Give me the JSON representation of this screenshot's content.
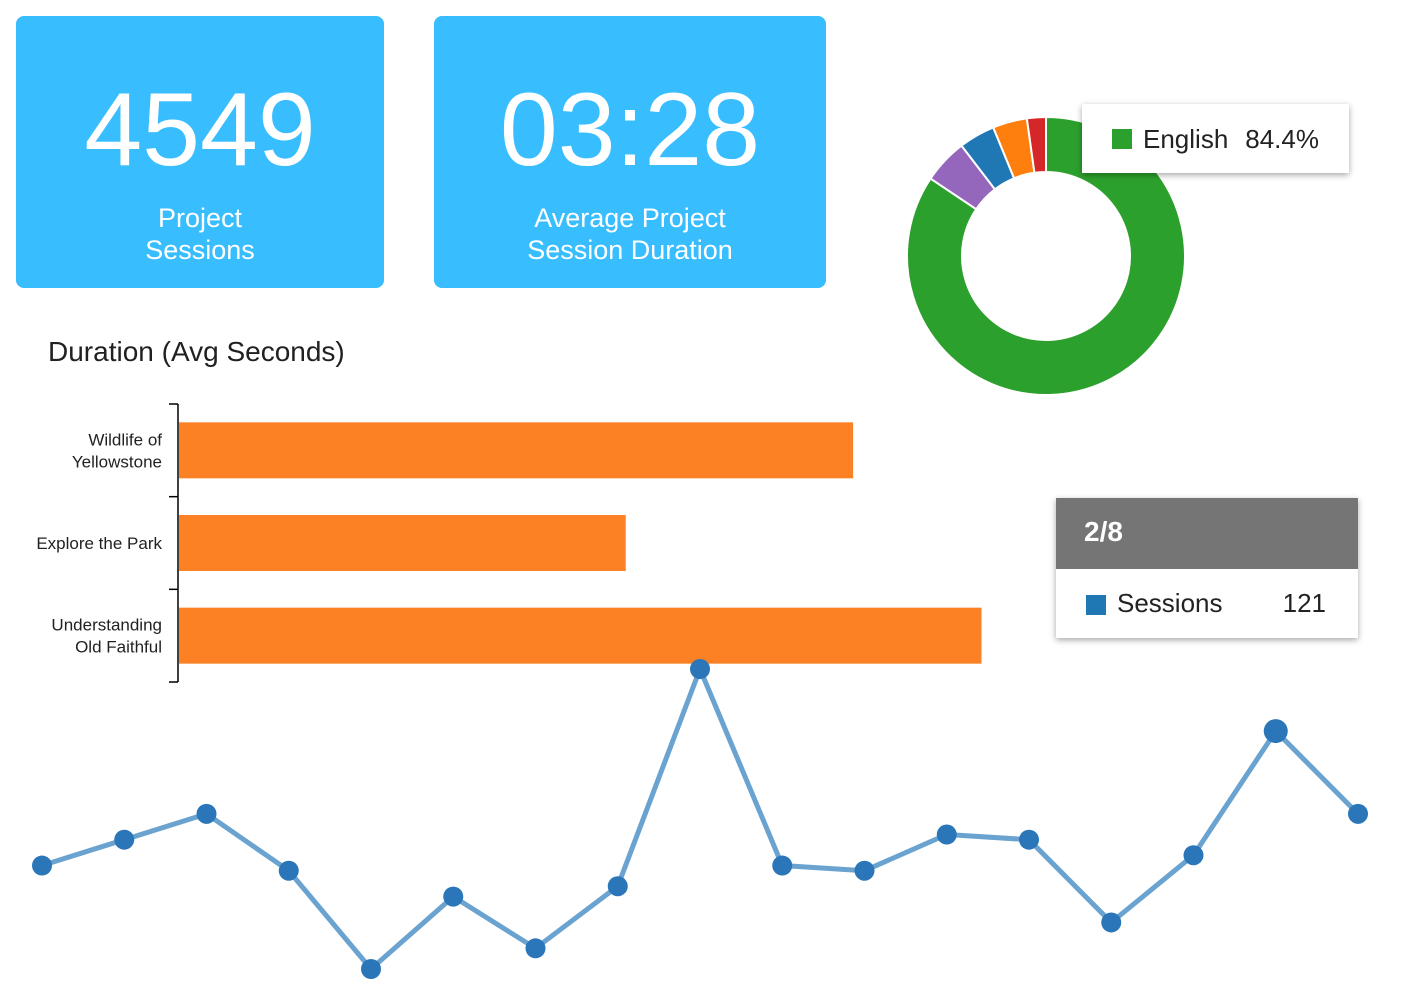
{
  "kpis": {
    "sessions": {
      "value": "4549",
      "label_line1": "Project",
      "label_line2": "Sessions"
    },
    "duration": {
      "value": "03:28",
      "label_line1": "Average Project",
      "label_line2": "Session Duration"
    }
  },
  "colors": {
    "kpi_background": "#38bdff",
    "bar": "#fb8124",
    "line": "#6aa3d0",
    "point": "#2a76b8"
  },
  "chart_data": [
    {
      "type": "pie",
      "subtype": "donut",
      "slices": [
        {
          "label": "English",
          "value": 84.4,
          "color": "#2ca02c"
        },
        {
          "label": "",
          "value": 5.2,
          "color": "#9467bd"
        },
        {
          "label": "",
          "value": 4.2,
          "color": "#1f77b4"
        },
        {
          "label": "",
          "value": 4.0,
          "color": "#ff7f0e"
        },
        {
          "label": "",
          "value": 2.2,
          "color": "#d62728"
        }
      ],
      "tooltip": {
        "label": "English",
        "value": "84.4%"
      }
    },
    {
      "type": "bar",
      "orientation": "horizontal",
      "title": "Duration (Avg Seconds)",
      "categories": [
        [
          "Wildlife of",
          "Yellowstone"
        ],
        [
          "Explore the Park"
        ],
        [
          "Understanding",
          "Old Faithful"
        ]
      ],
      "values": [
        252,
        167,
        300
      ],
      "xlim": [
        0,
        400
      ],
      "color": "#fb8124"
    },
    {
      "type": "line",
      "x": [
        1,
        2,
        3,
        4,
        5,
        6,
        7,
        8,
        9,
        10,
        11,
        12,
        13,
        14,
        15,
        16,
        17
      ],
      "series": [
        {
          "name": "Sessions",
          "values": [
            95,
            100,
            105,
            94,
            75,
            89,
            79,
            91,
            133,
            95,
            94,
            101,
            100,
            84,
            97,
            121,
            105
          ]
        }
      ],
      "ylim": [
        70,
        135
      ],
      "tooltip": {
        "header": "2/8",
        "series": "Sessions",
        "value": "121"
      }
    }
  ]
}
